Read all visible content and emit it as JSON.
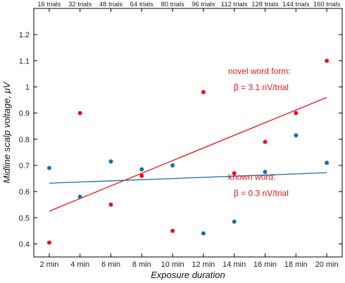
{
  "chart_data": {
    "type": "scatter",
    "xlabel": "Exposure duration",
    "ylabel": "Midline scalp voltage, μV",
    "x_ticks": [
      {
        "value": 2,
        "label": "2 min"
      },
      {
        "value": 4,
        "label": "4 min"
      },
      {
        "value": 6,
        "label": "6 min"
      },
      {
        "value": 8,
        "label": "8 min"
      },
      {
        "value": 10,
        "label": "10 min"
      },
      {
        "value": 12,
        "label": "12 min"
      },
      {
        "value": 14,
        "label": "14 min"
      },
      {
        "value": 16,
        "label": "16 min"
      },
      {
        "value": 18,
        "label": "18 min"
      },
      {
        "value": 20,
        "label": "20 min"
      }
    ],
    "top_ticks": [
      {
        "value": 2,
        "label": "16 trials"
      },
      {
        "value": 4,
        "label": "32 trials"
      },
      {
        "value": 6,
        "label": "48 trials"
      },
      {
        "value": 8,
        "label": "64 trials"
      },
      {
        "value": 10,
        "label": "80 trials"
      },
      {
        "value": 12,
        "label": "96 trials"
      },
      {
        "value": 14,
        "label": "112 trials"
      },
      {
        "value": 16,
        "label": "128 trials"
      },
      {
        "value": 18,
        "label": "144 trials"
      },
      {
        "value": 20,
        "label": "160 trials"
      }
    ],
    "y_ticks": [
      0.4,
      0.5,
      0.6,
      0.7,
      0.8,
      0.9,
      1,
      1.1,
      1.2
    ],
    "xlim": [
      1,
      21
    ],
    "ylim": [
      0.35,
      1.3
    ],
    "grid": false,
    "series": [
      {
        "name": "novel word form",
        "color": "#e8141b",
        "points": [
          {
            "x": 2,
            "y": 0.405
          },
          {
            "x": 4,
            "y": 0.9
          },
          {
            "x": 6,
            "y": 0.55
          },
          {
            "x": 8,
            "y": 0.66
          },
          {
            "x": 10,
            "y": 0.45
          },
          {
            "x": 12,
            "y": 0.98
          },
          {
            "x": 14,
            "y": 0.67
          },
          {
            "x": 16,
            "y": 0.79
          },
          {
            "x": 18,
            "y": 0.9
          },
          {
            "x": 20,
            "y": 1.1
          }
        ],
        "fit": {
          "x1": 2,
          "y1": 0.525,
          "x2": 20,
          "y2": 0.96
        }
      },
      {
        "name": "known word",
        "color": "#1c6ea4",
        "points": [
          {
            "x": 2,
            "y": 0.69
          },
          {
            "x": 4,
            "y": 0.58
          },
          {
            "x": 6,
            "y": 0.715
          },
          {
            "x": 8,
            "y": 0.685
          },
          {
            "x": 10,
            "y": 0.7
          },
          {
            "x": 12,
            "y": 0.44
          },
          {
            "x": 14,
            "y": 0.485
          },
          {
            "x": 16,
            "y": 0.675
          },
          {
            "x": 18,
            "y": 0.815
          },
          {
            "x": 20,
            "y": 0.71
          }
        ],
        "fit": {
          "x1": 2,
          "y1": 0.632,
          "x2": 20,
          "y2": 0.672
        }
      }
    ],
    "annotations": [
      {
        "series": "novel word form",
        "line1": "novel word form:",
        "line2": "β = 3.1 nV/trial",
        "color": "#e8141b"
      },
      {
        "series": "known word",
        "line1": "known word:",
        "line2": "β = 0.3 nV/trial",
        "color": "#e8141b"
      }
    ]
  }
}
